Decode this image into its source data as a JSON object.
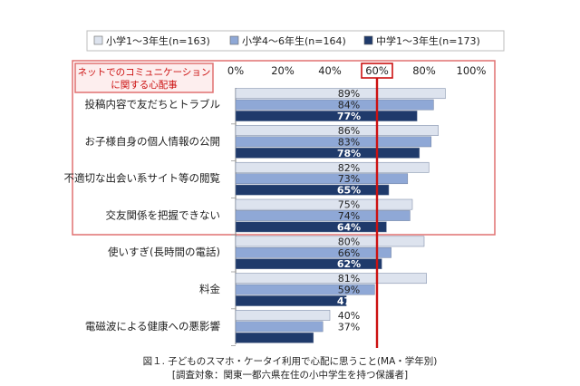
{
  "chart_data": {
    "type": "bar",
    "orientation": "horizontal",
    "series": [
      {
        "name": "小学1～3年生(n=163)",
        "color": "#dde3ee",
        "values": [
          89,
          86,
          82,
          75,
          80,
          81,
          40
        ]
      },
      {
        "name": "小学4～6年生(n=164)",
        "color": "#8fa8d6",
        "values": [
          84,
          83,
          73,
          74,
          66,
          59,
          37
        ]
      },
      {
        "name": "中学1～3年生(n=173)",
        "color": "#1f3a6b",
        "values": [
          77,
          78,
          65,
          64,
          62,
          47,
          33
        ]
      }
    ],
    "categories": [
      "投稿内容で友だちとトラブル",
      "お子様自身の個人情報の公開",
      "不適切な出会い系サイト等の閲覧",
      "交友関係を把握できない",
      "使いすぎ(長時間の電話)",
      "料金",
      "電磁波による健康への悪影響"
    ],
    "value_labels": [
      [
        "89%",
        "84%",
        "77%"
      ],
      [
        "86%",
        "83%",
        "78%"
      ],
      [
        "82%",
        "73%",
        "65%"
      ],
      [
        "75%",
        "74%",
        "64%"
      ],
      [
        "80%",
        "66%",
        "62%"
      ],
      [
        "81%",
        "59%",
        "47%"
      ],
      [
        "40%",
        "37%",
        "33%"
      ]
    ],
    "xlim": [
      0,
      100
    ],
    "x_ticks": [
      "0%",
      "20%",
      "40%",
      "60%",
      "80%",
      "100%"
    ],
    "highlight_tick_index": 3,
    "reference_line_value": 60,
    "reference_line_color": "#cc1111",
    "highlight_group_label": "ネットでのコミュニケーション\nに関する心配事",
    "highlight_color": "#e07070",
    "grid": false,
    "legend_position": "top"
  },
  "caption": {
    "line1": "図１. 子どものスマホ・ケータイ利用で心配に思うこと(MA・学年別)",
    "line2": "[調査対象：関東一都六県在住の小中学生を持つ保護者]"
  }
}
